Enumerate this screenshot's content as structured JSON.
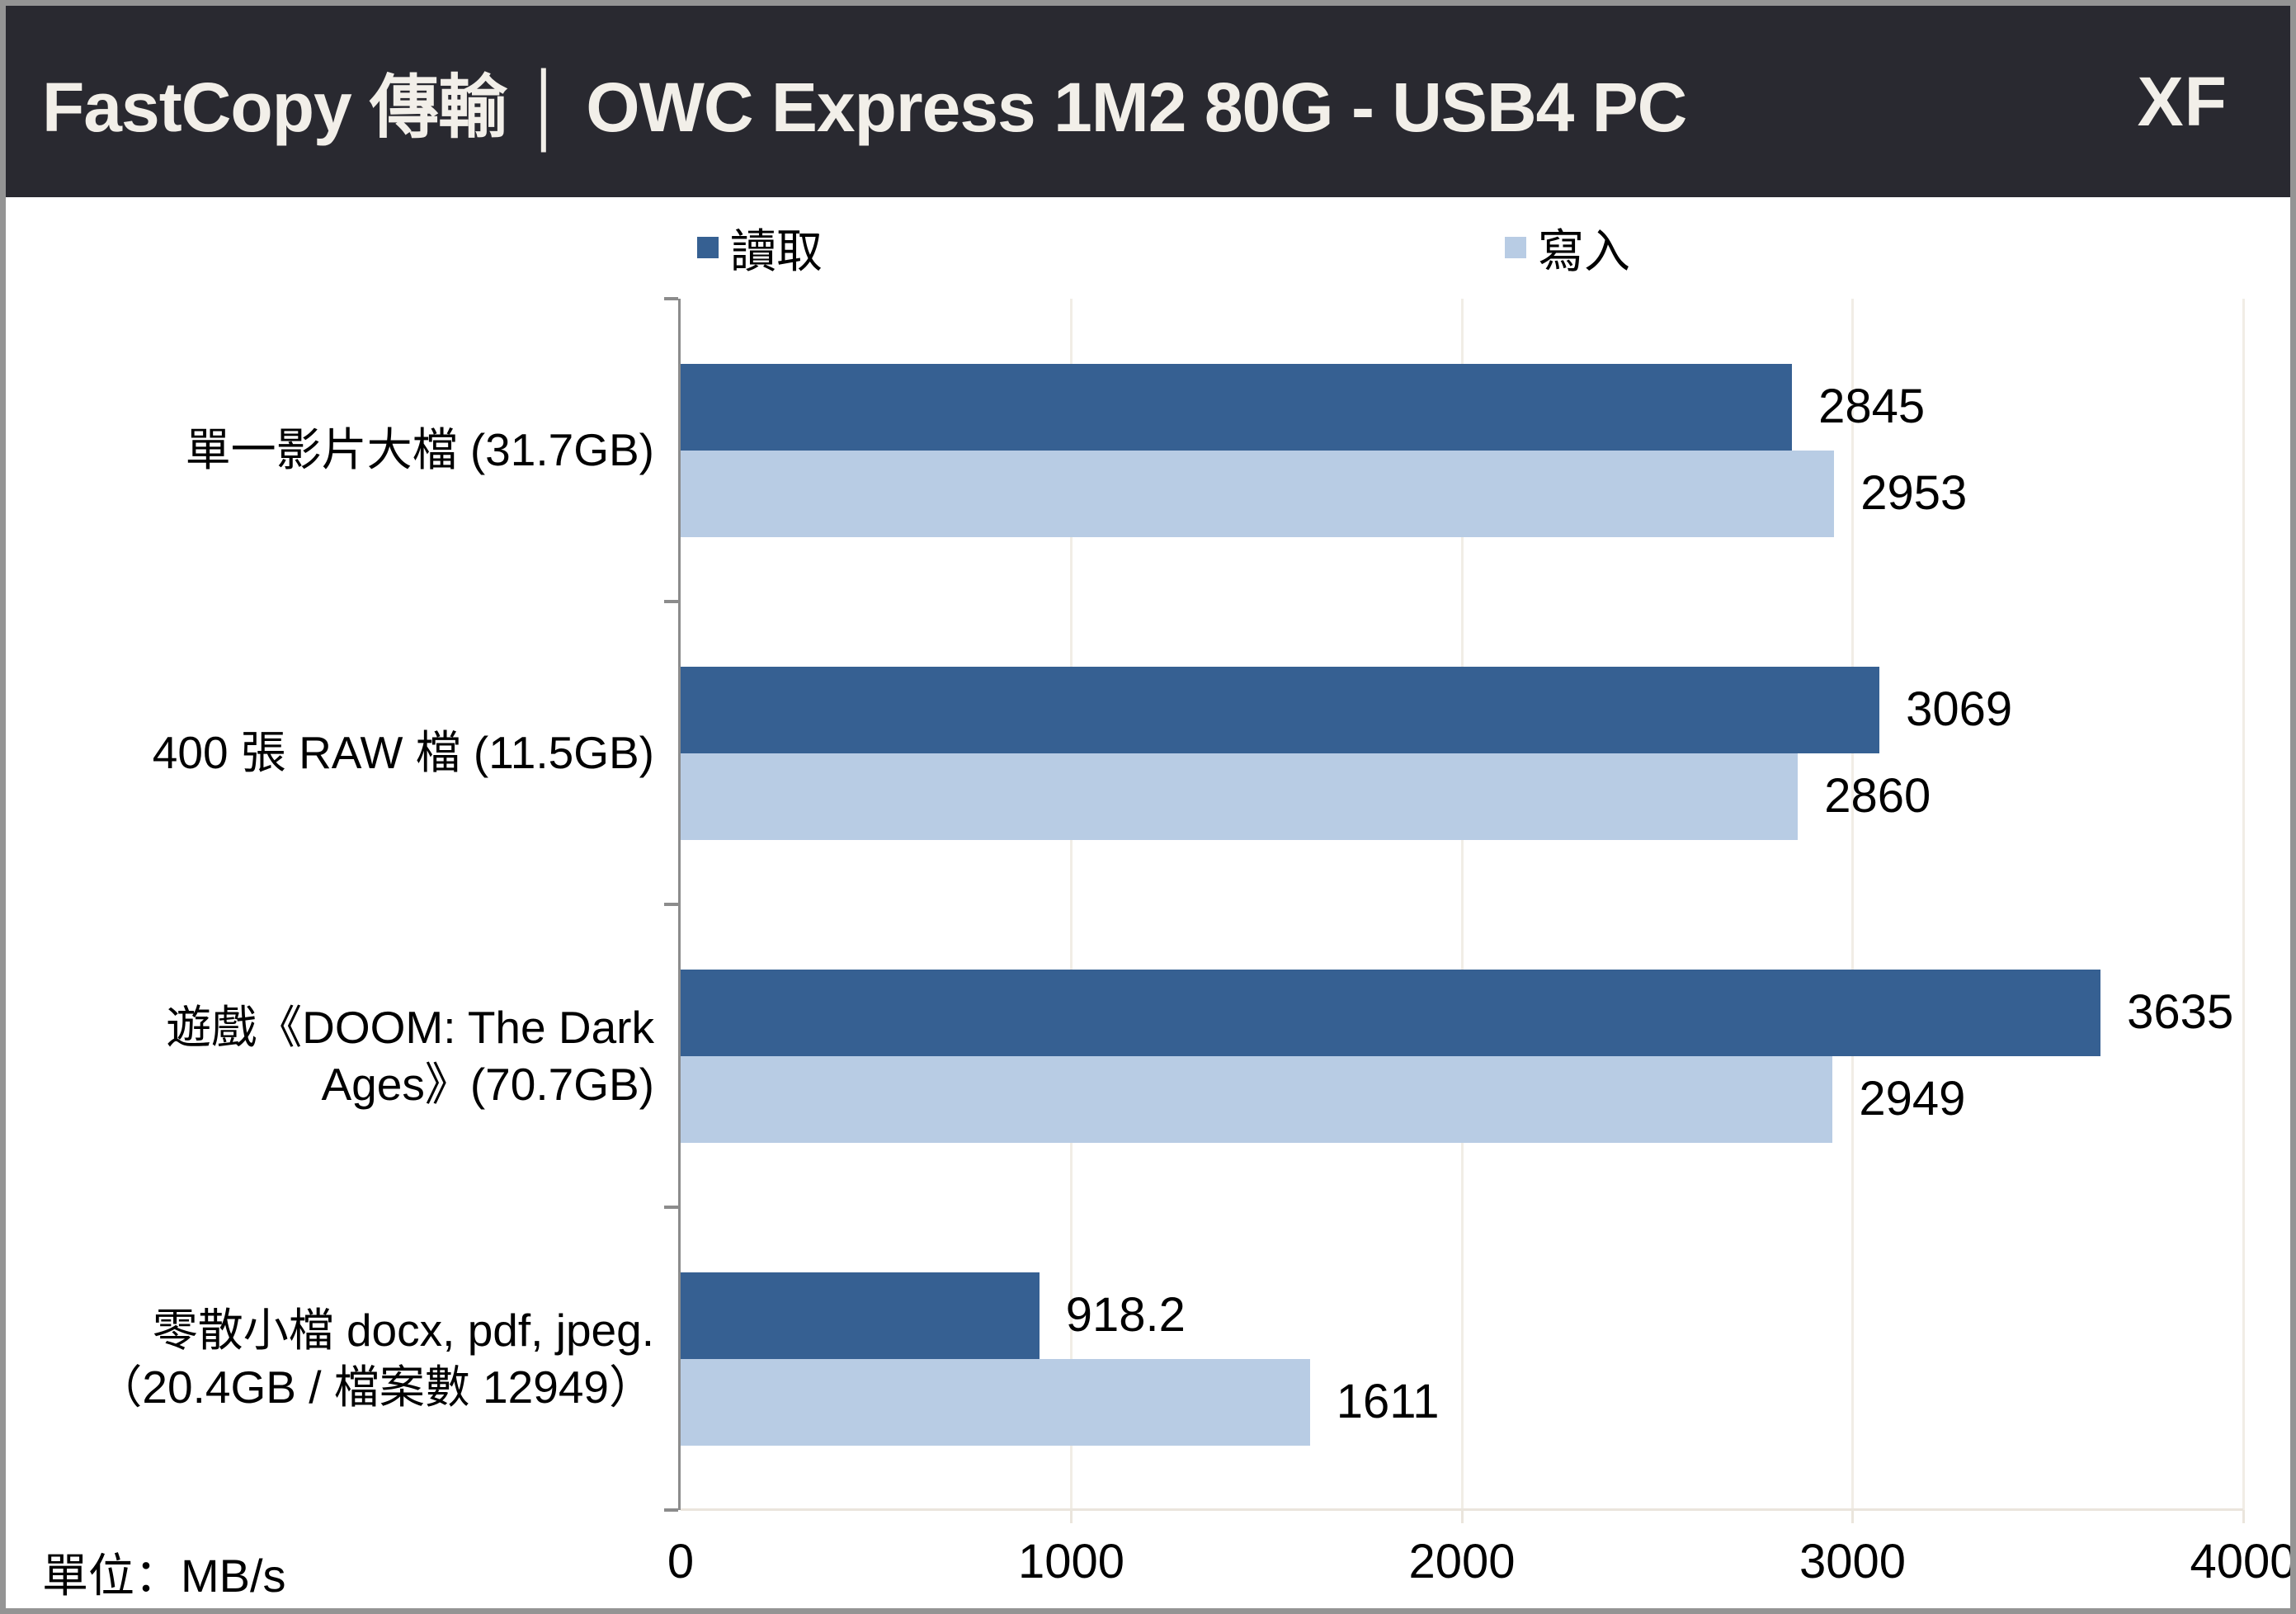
{
  "header": {
    "title": "FastCopy 傳輸 │ OWC Express 1M2 80G - USB4 PC",
    "badge": "XF"
  },
  "legend": {
    "read": "讀取",
    "write": "寫入"
  },
  "footer": {
    "unit": "單位：MB/s"
  },
  "colors": {
    "read": "#366092",
    "write": "#b8cce4",
    "header_bg": "#292930",
    "header_text": "#f2efe9",
    "axis": "#8c8c8c",
    "gridline": "#f1ede6",
    "baseline": "#eae5dc"
  },
  "chart_data": {
    "type": "bar",
    "orientation": "horizontal",
    "title": "FastCopy 傳輸 │ OWC Express 1M2 80G - USB4 PC",
    "unit": "MB/s",
    "categories": [
      [
        "單一影片大檔 (31.7GB)"
      ],
      [
        "400 張 RAW 檔 (11.5GB)"
      ],
      [
        "遊戲《DOOM: The Dark",
        "Ages》(70.7GB)"
      ],
      [
        "零散小檔 docx, pdf, jpeg.",
        "（20.4GB / 檔案數 12949）"
      ]
    ],
    "series": [
      {
        "name": "讀取",
        "color": "#366092",
        "values": [
          2845,
          3069,
          3635,
          918.2
        ],
        "labels": [
          "2845",
          "3069",
          "3635",
          "918.2"
        ]
      },
      {
        "name": "寫入",
        "color": "#b8cce4",
        "values": [
          2953,
          2860,
          2949,
          1611
        ],
        "labels": [
          "2953",
          "2860",
          "2949",
          "1611"
        ]
      }
    ],
    "xlim": [
      0,
      4000
    ],
    "xticks": [
      0,
      1000,
      2000,
      3000,
      4000
    ],
    "grid": true,
    "legend_position": "top"
  }
}
